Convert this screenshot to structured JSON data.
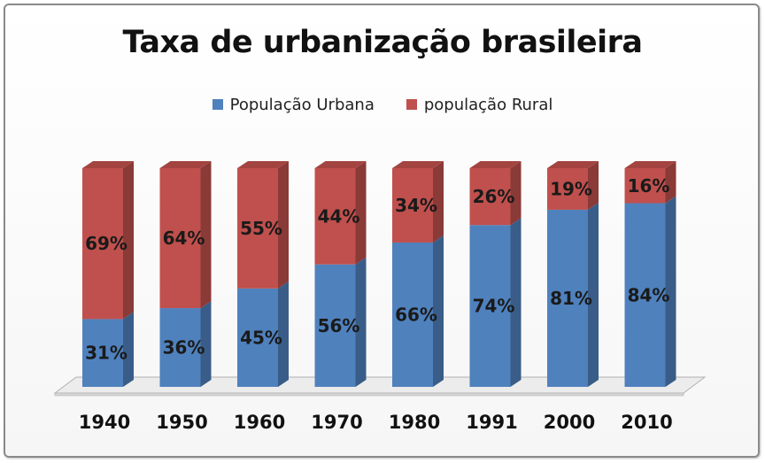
{
  "chart_data": {
    "type": "bar",
    "stacked": true,
    "title": "Taxa de urbanização brasileira",
    "categories": [
      "1940",
      "1950",
      "1960",
      "1970",
      "1980",
      "1991",
      "2000",
      "2010"
    ],
    "series": [
      {
        "name": "População Urbana",
        "values": [
          31,
          36,
          45,
          56,
          66,
          74,
          81,
          84
        ],
        "labels": [
          "31%",
          "36%",
          "45%",
          "56%",
          "66%",
          "74%",
          "81%",
          "84%"
        ],
        "color": "#4f81bd"
      },
      {
        "name": "população Rural",
        "values": [
          69,
          64,
          55,
          44,
          34,
          26,
          19,
          16
        ],
        "labels": [
          "69%",
          "64%",
          "55%",
          "44%",
          "34%",
          "26%",
          "19%",
          "16%"
        ],
        "color": "#c0504d"
      }
    ],
    "ylim": [
      0,
      100
    ],
    "grid": false,
    "legend": "top"
  }
}
